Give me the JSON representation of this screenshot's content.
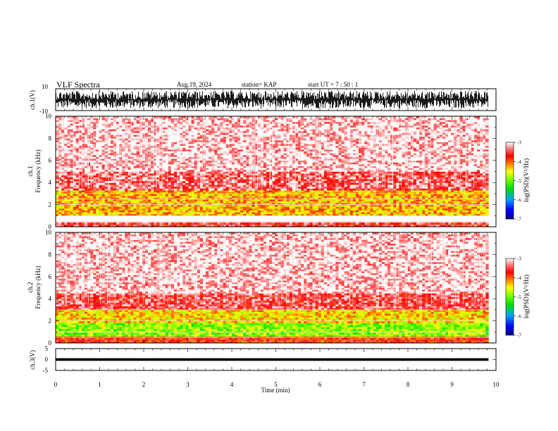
{
  "header": {
    "title": "VLF Spectra",
    "date": "Aug.19, 2024",
    "station": "station= KAP",
    "start_ut": "start  UT  =   7 : 50 : 1"
  },
  "chart_data": [
    {
      "panel": "ch1-waveform",
      "type": "line",
      "ylabel": "ch.1(V)",
      "ylim": [
        -10,
        10
      ],
      "yticks": [
        "10",
        "-10"
      ],
      "xlim": [
        0,
        10
      ],
      "data_extent_min": 9.83,
      "signal_amplitude_range": [
        -8,
        8
      ]
    },
    {
      "panel": "ch1-spectrogram",
      "type": "heatmap",
      "ylabel_line1": "ch.1",
      "ylabel_line2": "Frequency (kHz)",
      "ylim": [
        0,
        10
      ],
      "yticks": [
        "0",
        "2",
        "4",
        "6",
        "8",
        "10"
      ],
      "xlim": [
        0,
        10
      ],
      "colorbar": {
        "label": "log(PSD)(V²/Hz)",
        "range": [
          -7,
          -3
        ],
        "ticks": [
          "-3",
          "-4",
          "-5",
          "-6",
          "-7"
        ]
      },
      "bands": [
        {
          "from_khz": 0.0,
          "to_khz": 0.4,
          "level": -3.6
        },
        {
          "from_khz": 1.0,
          "to_khz": 3.3,
          "level": -4.3
        },
        {
          "from_khz": 3.3,
          "to_khz": 5.0,
          "level": -3.4
        },
        {
          "from_khz": 5.0,
          "to_khz": 10.0,
          "level": -3.1
        }
      ],
      "lines_khz": [
        0.5,
        1.0,
        2.0,
        2.5,
        3.0
      ]
    },
    {
      "panel": "ch2-spectrogram",
      "type": "heatmap",
      "ylabel_line1": "ch.2",
      "ylabel_line2": "Frequency (kHz)",
      "ylim": [
        0,
        10
      ],
      "yticks": [
        "0",
        "2",
        "4",
        "6",
        "8",
        "10"
      ],
      "xlim": [
        0,
        10
      ],
      "colorbar": {
        "label": "log(PSD)(V²/Hz)",
        "range": [
          -7,
          -3
        ],
        "ticks": [
          "-3",
          "-4",
          "-5",
          "-6",
          "-7"
        ]
      },
      "bands": [
        {
          "from_khz": 0.0,
          "to_khz": 0.6,
          "level": -3.8
        },
        {
          "from_khz": 0.6,
          "to_khz": 1.8,
          "level": -4.9
        },
        {
          "from_khz": 1.8,
          "to_khz": 3.0,
          "level": -4.4
        },
        {
          "from_khz": 3.0,
          "to_khz": 4.5,
          "level": -3.5
        },
        {
          "from_khz": 4.5,
          "to_khz": 10.0,
          "level": -3.1
        }
      ],
      "lines_khz": [
        0.5,
        1.0,
        2.0,
        3.0
      ]
    },
    {
      "panel": "ch3-waveform",
      "type": "line",
      "ylabel": "ch.3(V)",
      "ylim": [
        -5,
        5
      ],
      "yticks": [
        "5",
        "0",
        "-5"
      ],
      "xlim": [
        0,
        10
      ],
      "data_extent_min": 9.83,
      "signal_amplitude_range": [
        -0.6,
        0.6
      ]
    }
  ],
  "xaxis": {
    "label": "Time (min)",
    "ticks": [
      "0",
      "1",
      "2",
      "3",
      "4",
      "5",
      "6",
      "7",
      "8",
      "9",
      "10"
    ]
  }
}
